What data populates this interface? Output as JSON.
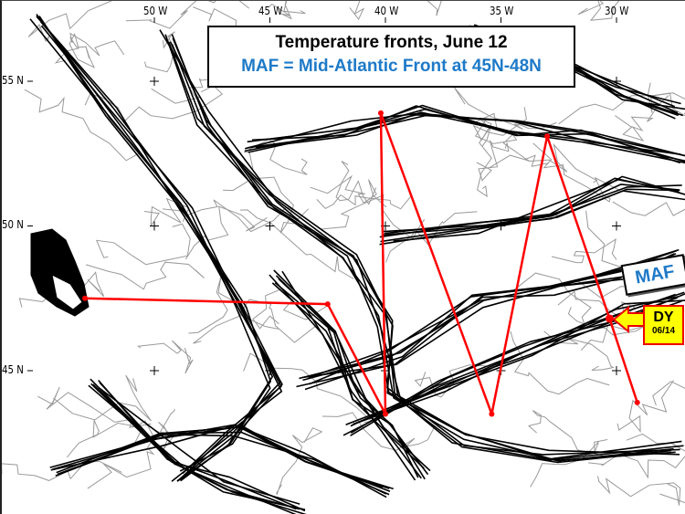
{
  "map": {
    "longitude_labels": [
      "50 W",
      "45 W",
      "40 W",
      "35 W",
      "30 W"
    ],
    "longitude_values": [
      50,
      45,
      40,
      35,
      30
    ],
    "latitude_labels": [
      "55 N",
      "50 N",
      "45 N"
    ],
    "latitude_values": [
      55,
      50,
      45
    ],
    "extent": {
      "lon_west": 56.5,
      "lon_east": 27.5,
      "lat_north": 57.8,
      "lat_south": 40.3
    },
    "track_color": "#ff0000",
    "front_color": "#000000",
    "track_points": [
      {
        "lon_w": 53.0,
        "lat_n": 47.5
      },
      {
        "lon_w": 42.5,
        "lat_n": 47.3
      },
      {
        "lon_w": 40.0,
        "lat_n": 43.5
      },
      {
        "lon_w": 40.2,
        "lat_n": 53.9
      },
      {
        "lon_w": 35.4,
        "lat_n": 43.5
      },
      {
        "lon_w": 33.0,
        "lat_n": 53.1
      },
      {
        "lon_w": 30.3,
        "lat_n": 46.8
      },
      {
        "lon_w": 29.1,
        "lat_n": 43.9
      }
    ],
    "current_position_index": 6
  },
  "title": {
    "line1": "Temperature fronts, June 12",
    "line2": "MAF = Mid-Atlantic Front at 45N-48N",
    "line2_color": "#1e7ac8"
  },
  "maf_label": "MAF",
  "dy_callout": {
    "label": "DY",
    "date": "06/14",
    "fill": "#ffff00",
    "border": "#ff0000"
  }
}
